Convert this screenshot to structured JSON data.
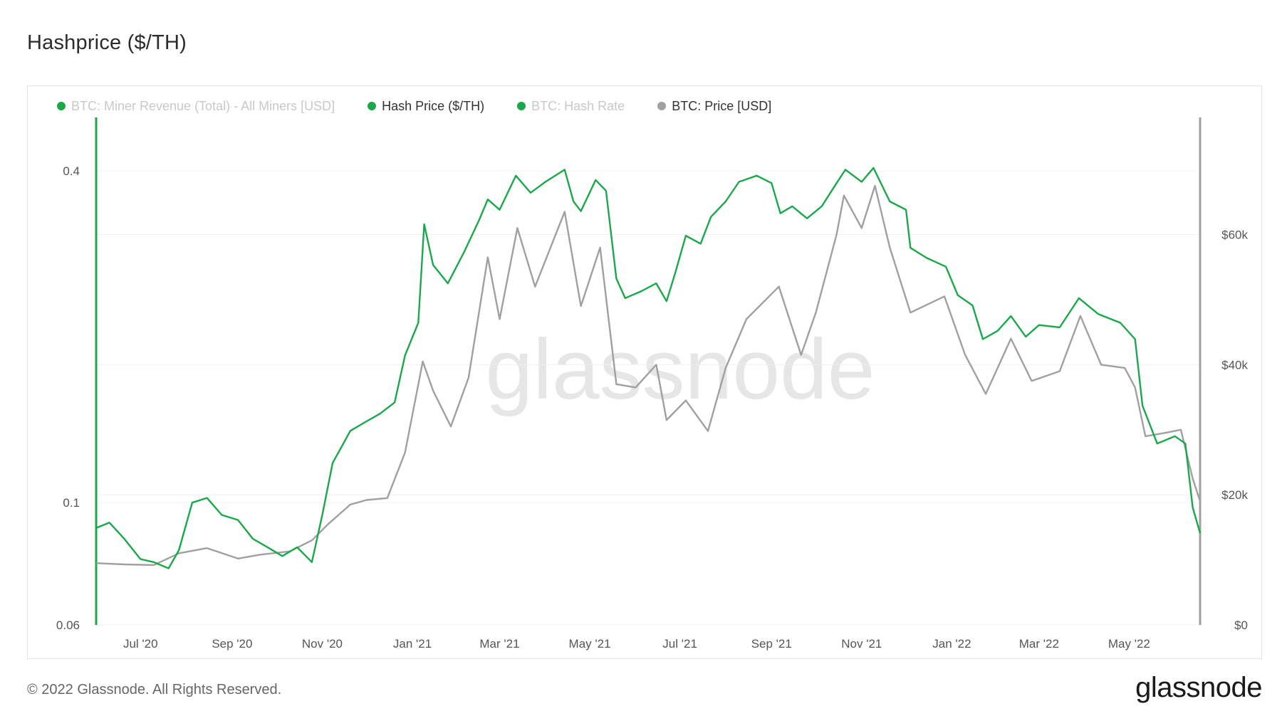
{
  "title": "Hashprice ($/TH)",
  "footer": "© 2022 Glassnode. All Rights Reserved.",
  "brand": "glassnode",
  "watermark": "glassnode",
  "legend": [
    {
      "label": "BTC: Miner Revenue (Total) - All Miners [USD]",
      "color": "#1aa84a",
      "active": false
    },
    {
      "label": "Hash Price ($/TH)",
      "color": "#1aa84a",
      "active": true
    },
    {
      "label": "BTC: Hash Rate",
      "color": "#1aa84a",
      "active": false
    },
    {
      "label": "BTC: Price [USD]",
      "color": "#a0a0a0",
      "active": true
    }
  ],
  "chart_data": {
    "type": "line",
    "x_range": [
      "2020-06-01",
      "2022-06-18"
    ],
    "x_ticks": [
      {
        "date": "2020-07-01",
        "label": "Jul '20"
      },
      {
        "date": "2020-09-01",
        "label": "Sep '20"
      },
      {
        "date": "2020-11-01",
        "label": "Nov '20"
      },
      {
        "date": "2021-01-01",
        "label": "Jan '21"
      },
      {
        "date": "2021-03-01",
        "label": "Mar '21"
      },
      {
        "date": "2021-05-01",
        "label": "May '21"
      },
      {
        "date": "2021-07-01",
        "label": "Jul '21"
      },
      {
        "date": "2021-09-01",
        "label": "Sep '21"
      },
      {
        "date": "2021-11-01",
        "label": "Nov '21"
      },
      {
        "date": "2022-01-01",
        "label": "Jan '22"
      },
      {
        "date": "2022-03-01",
        "label": "Mar '22"
      },
      {
        "date": "2022-05-01",
        "label": "May '22"
      }
    ],
    "y_left": {
      "scale": "log",
      "range": [
        0.06,
        0.5
      ],
      "ticks": [
        {
          "value": 0.06,
          "label": "0.06"
        },
        {
          "value": 0.1,
          "label": "0.1"
        },
        {
          "value": 0.4,
          "label": "0.4"
        }
      ]
    },
    "y_right": {
      "scale": "linear",
      "range": [
        0,
        78000
      ],
      "ticks": [
        {
          "value": 0,
          "label": "$0"
        },
        {
          "value": 20000,
          "label": "$20k"
        },
        {
          "value": 40000,
          "label": "$40k"
        },
        {
          "value": 60000,
          "label": "$60k"
        }
      ]
    },
    "grid": true,
    "series": [
      {
        "name": "Hash Price ($/TH)",
        "axis": "left",
        "color": "#1aa84a",
        "points": [
          [
            "2020-06-01",
            0.09
          ],
          [
            "2020-06-10",
            0.092
          ],
          [
            "2020-06-20",
            0.086
          ],
          [
            "2020-07-01",
            0.079
          ],
          [
            "2020-07-10",
            0.078
          ],
          [
            "2020-07-20",
            0.076
          ],
          [
            "2020-07-27",
            0.082
          ],
          [
            "2020-08-05",
            0.1
          ],
          [
            "2020-08-15",
            0.102
          ],
          [
            "2020-08-25",
            0.095
          ],
          [
            "2020-09-05",
            0.093
          ],
          [
            "2020-09-15",
            0.086
          ],
          [
            "2020-09-25",
            0.083
          ],
          [
            "2020-10-05",
            0.08
          ],
          [
            "2020-10-15",
            0.083
          ],
          [
            "2020-10-25",
            0.078
          ],
          [
            "2020-11-01",
            0.095
          ],
          [
            "2020-11-08",
            0.118
          ],
          [
            "2020-11-20",
            0.135
          ],
          [
            "2020-11-30",
            0.14
          ],
          [
            "2020-12-10",
            0.145
          ],
          [
            "2020-12-20",
            0.152
          ],
          [
            "2020-12-27",
            0.185
          ],
          [
            "2021-01-05",
            0.212
          ],
          [
            "2021-01-09",
            0.32
          ],
          [
            "2021-01-15",
            0.27
          ],
          [
            "2021-01-25",
            0.25
          ],
          [
            "2021-02-05",
            0.285
          ],
          [
            "2021-02-15",
            0.325
          ],
          [
            "2021-02-21",
            0.355
          ],
          [
            "2021-03-01",
            0.34
          ],
          [
            "2021-03-12",
            0.392
          ],
          [
            "2021-03-22",
            0.365
          ],
          [
            "2021-04-01",
            0.382
          ],
          [
            "2021-04-14",
            0.402
          ],
          [
            "2021-04-20",
            0.352
          ],
          [
            "2021-04-25",
            0.338
          ],
          [
            "2021-05-05",
            0.385
          ],
          [
            "2021-05-12",
            0.368
          ],
          [
            "2021-05-19",
            0.255
          ],
          [
            "2021-05-25",
            0.235
          ],
          [
            "2021-06-05",
            0.242
          ],
          [
            "2021-06-15",
            0.25
          ],
          [
            "2021-06-22",
            0.232
          ],
          [
            "2021-06-28",
            0.262
          ],
          [
            "2021-07-05",
            0.305
          ],
          [
            "2021-07-15",
            0.295
          ],
          [
            "2021-07-22",
            0.33
          ],
          [
            "2021-08-01",
            0.352
          ],
          [
            "2021-08-10",
            0.382
          ],
          [
            "2021-08-22",
            0.392
          ],
          [
            "2021-09-01",
            0.38
          ],
          [
            "2021-09-07",
            0.335
          ],
          [
            "2021-09-15",
            0.345
          ],
          [
            "2021-09-25",
            0.328
          ],
          [
            "2021-10-05",
            0.345
          ],
          [
            "2021-10-15",
            0.38
          ],
          [
            "2021-10-21",
            0.402
          ],
          [
            "2021-11-01",
            0.382
          ],
          [
            "2021-11-09",
            0.405
          ],
          [
            "2021-11-20",
            0.352
          ],
          [
            "2021-12-01",
            0.34
          ],
          [
            "2021-12-04",
            0.29
          ],
          [
            "2021-12-15",
            0.278
          ],
          [
            "2021-12-28",
            0.268
          ],
          [
            "2022-01-05",
            0.238
          ],
          [
            "2022-01-15",
            0.228
          ],
          [
            "2022-01-22",
            0.198
          ],
          [
            "2022-02-01",
            0.205
          ],
          [
            "2022-02-10",
            0.218
          ],
          [
            "2022-02-20",
            0.2
          ],
          [
            "2022-03-01",
            0.21
          ],
          [
            "2022-03-15",
            0.208
          ],
          [
            "2022-03-28",
            0.235
          ],
          [
            "2022-04-10",
            0.22
          ],
          [
            "2022-04-25",
            0.212
          ],
          [
            "2022-05-05",
            0.198
          ],
          [
            "2022-05-10",
            0.15
          ],
          [
            "2022-05-20",
            0.128
          ],
          [
            "2022-06-01",
            0.132
          ],
          [
            "2022-06-08",
            0.128
          ],
          [
            "2022-06-13",
            0.098
          ],
          [
            "2022-06-18",
            0.088
          ]
        ]
      },
      {
        "name": "BTC: Price [USD]",
        "axis": "right",
        "color": "#a0a0a0",
        "points": [
          [
            "2020-06-01",
            9500
          ],
          [
            "2020-06-20",
            9300
          ],
          [
            "2020-07-10",
            9200
          ],
          [
            "2020-07-27",
            11000
          ],
          [
            "2020-08-15",
            11800
          ],
          [
            "2020-09-05",
            10200
          ],
          [
            "2020-09-20",
            10800
          ],
          [
            "2020-10-10",
            11300
          ],
          [
            "2020-10-25",
            13000
          ],
          [
            "2020-11-05",
            15500
          ],
          [
            "2020-11-20",
            18500
          ],
          [
            "2020-12-01",
            19200
          ],
          [
            "2020-12-15",
            19500
          ],
          [
            "2020-12-27",
            26500
          ],
          [
            "2021-01-08",
            40500
          ],
          [
            "2021-01-15",
            36000
          ],
          [
            "2021-01-27",
            30500
          ],
          [
            "2021-02-08",
            38000
          ],
          [
            "2021-02-21",
            56500
          ],
          [
            "2021-03-01",
            47000
          ],
          [
            "2021-03-13",
            61000
          ],
          [
            "2021-03-25",
            52000
          ],
          [
            "2021-04-14",
            63500
          ],
          [
            "2021-04-25",
            49000
          ],
          [
            "2021-05-08",
            58000
          ],
          [
            "2021-05-19",
            37000
          ],
          [
            "2021-06-01",
            36500
          ],
          [
            "2021-06-15",
            40000
          ],
          [
            "2021-06-22",
            31500
          ],
          [
            "2021-07-05",
            34500
          ],
          [
            "2021-07-20",
            29800
          ],
          [
            "2021-08-01",
            39500
          ],
          [
            "2021-08-15",
            47000
          ],
          [
            "2021-09-06",
            52000
          ],
          [
            "2021-09-21",
            41500
          ],
          [
            "2021-10-01",
            48000
          ],
          [
            "2021-10-15",
            60000
          ],
          [
            "2021-10-20",
            66000
          ],
          [
            "2021-11-01",
            61000
          ],
          [
            "2021-11-10",
            67500
          ],
          [
            "2021-11-20",
            58000
          ],
          [
            "2021-12-04",
            48000
          ],
          [
            "2021-12-27",
            50500
          ],
          [
            "2022-01-10",
            41500
          ],
          [
            "2022-01-24",
            35500
          ],
          [
            "2022-02-10",
            44000
          ],
          [
            "2022-02-24",
            37500
          ],
          [
            "2022-03-15",
            39000
          ],
          [
            "2022-03-29",
            47500
          ],
          [
            "2022-04-12",
            40000
          ],
          [
            "2022-04-28",
            39500
          ],
          [
            "2022-05-05",
            36500
          ],
          [
            "2022-05-12",
            29000
          ],
          [
            "2022-05-25",
            29500
          ],
          [
            "2022-06-05",
            30000
          ],
          [
            "2022-06-13",
            22500
          ],
          [
            "2022-06-18",
            19000
          ]
        ]
      }
    ]
  }
}
